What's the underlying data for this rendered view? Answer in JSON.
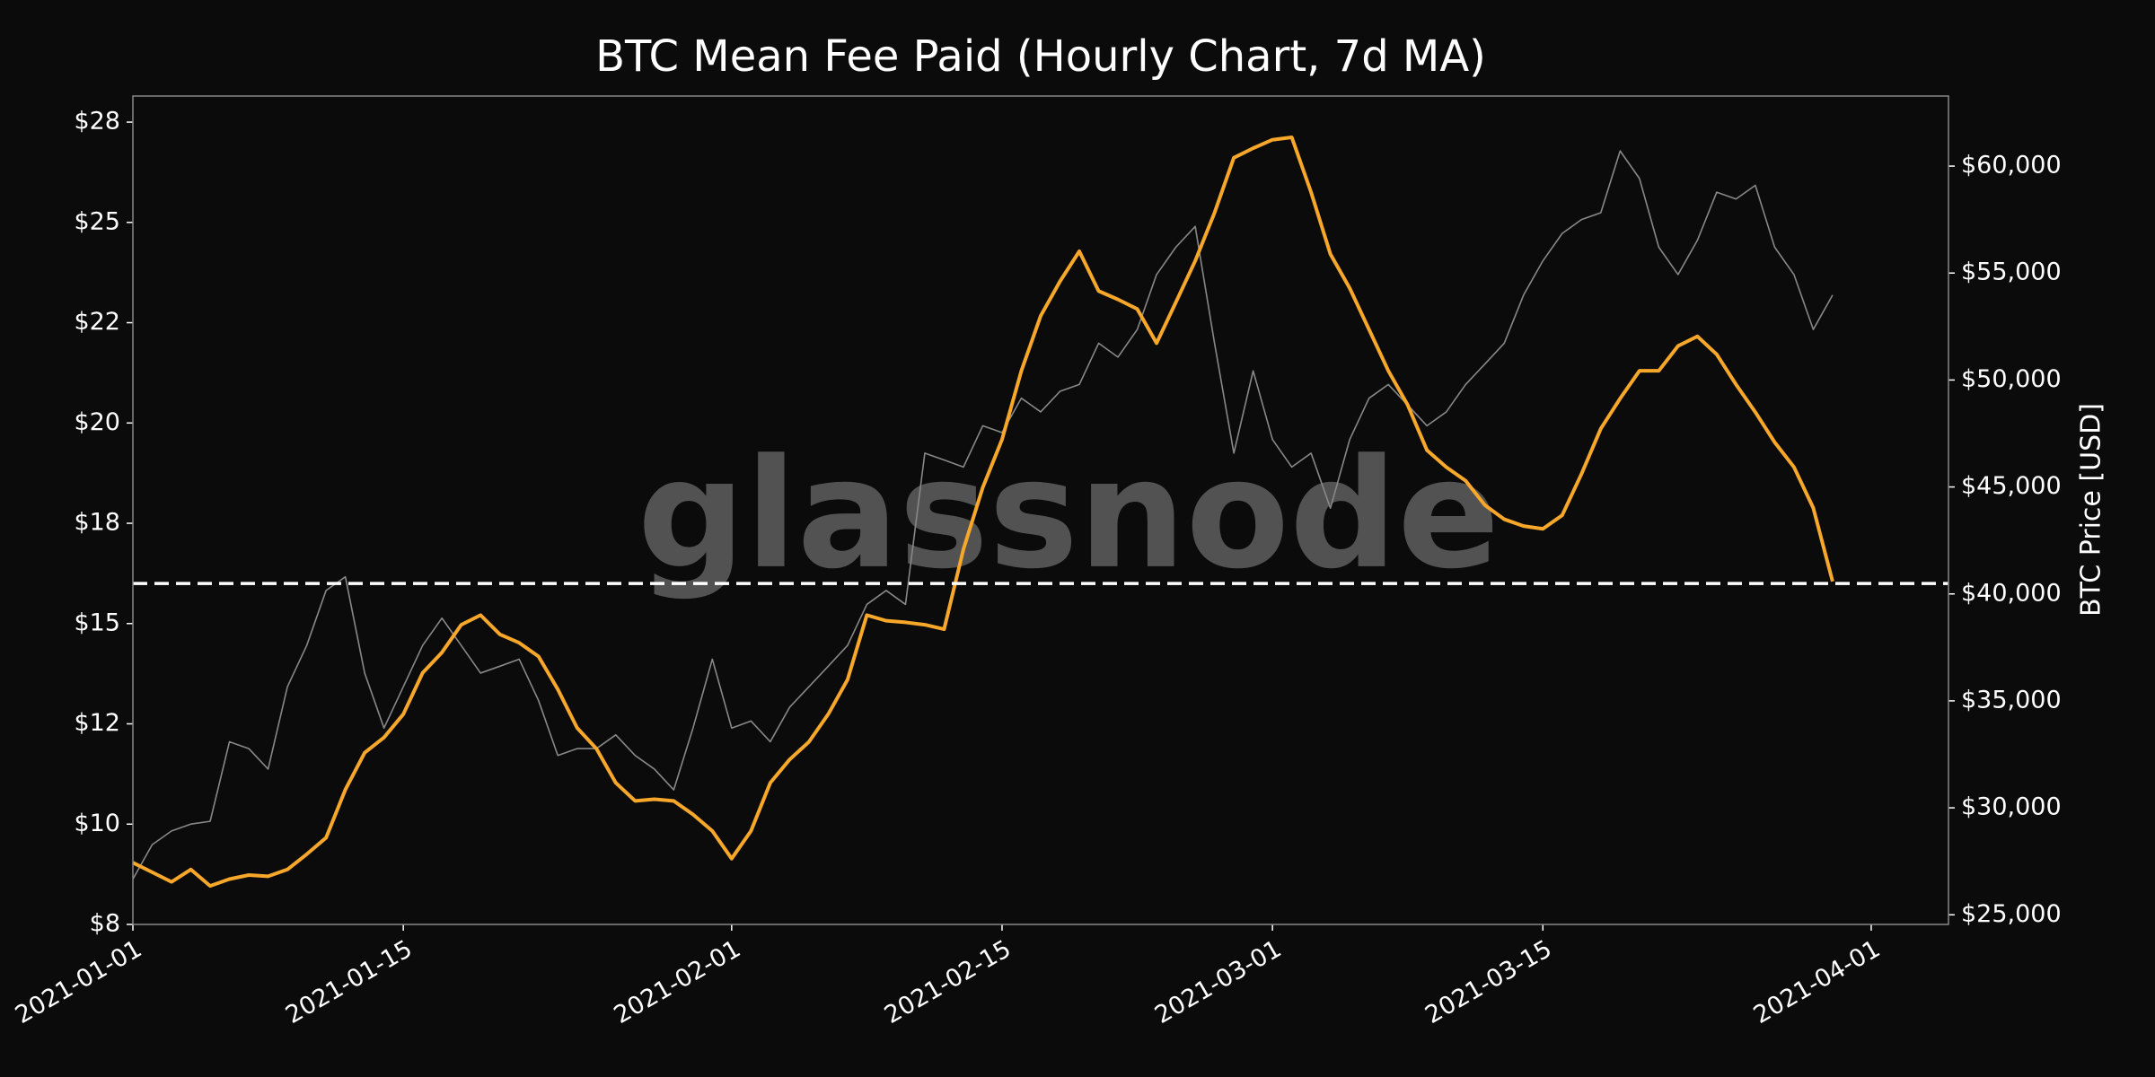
{
  "chart_data": {
    "type": "line",
    "title": "BTC Mean Fee Paid (Hourly Chart, 7d MA)",
    "y2label": "BTC Price [USD]",
    "watermark": "glassnode",
    "x": [
      "2021-01-01",
      "2021-01-02",
      "2021-01-03",
      "2021-01-04",
      "2021-01-05",
      "2021-01-06",
      "2021-01-07",
      "2021-01-08",
      "2021-01-09",
      "2021-01-10",
      "2021-01-11",
      "2021-01-12",
      "2021-01-13",
      "2021-01-14",
      "2021-01-15",
      "2021-01-16",
      "2021-01-17",
      "2021-01-18",
      "2021-01-19",
      "2021-01-20",
      "2021-01-21",
      "2021-01-22",
      "2021-01-23",
      "2021-01-24",
      "2021-01-25",
      "2021-01-26",
      "2021-01-27",
      "2021-01-28",
      "2021-01-29",
      "2021-01-30",
      "2021-01-31",
      "2021-02-01",
      "2021-02-02",
      "2021-02-03",
      "2021-02-04",
      "2021-02-05",
      "2021-02-06",
      "2021-02-07",
      "2021-02-08",
      "2021-02-09",
      "2021-02-10",
      "2021-02-11",
      "2021-02-12",
      "2021-02-13",
      "2021-02-14",
      "2021-02-15",
      "2021-02-16",
      "2021-02-17",
      "2021-02-18",
      "2021-02-19",
      "2021-02-20",
      "2021-02-21",
      "2021-02-22",
      "2021-02-23",
      "2021-02-24",
      "2021-02-25",
      "2021-02-26",
      "2021-02-27",
      "2021-02-28",
      "2021-03-01",
      "2021-03-02",
      "2021-03-03",
      "2021-03-04",
      "2021-03-05",
      "2021-03-06",
      "2021-03-07",
      "2021-03-08",
      "2021-03-09",
      "2021-03-10",
      "2021-03-11",
      "2021-03-12",
      "2021-03-13",
      "2021-03-14",
      "2021-03-15",
      "2021-03-16",
      "2021-03-17",
      "2021-03-18",
      "2021-03-19",
      "2021-03-20",
      "2021-03-21",
      "2021-03-22",
      "2021-03-23",
      "2021-03-24",
      "2021-03-25",
      "2021-03-26",
      "2021-03-27",
      "2021-03-28",
      "2021-03-29",
      "2021-03-30"
    ],
    "series": [
      {
        "color": "#888888",
        "axis": "y2",
        "values": [
          26670,
          28280,
          28920,
          29240,
          29370,
          33090,
          32770,
          31810,
          35660,
          37590,
          40160,
          40800,
          36300,
          33730,
          35660,
          37590,
          38870,
          37590,
          36300,
          36620,
          36950,
          35020,
          32450,
          32770,
          32770,
          33410,
          32450,
          31810,
          30840,
          33730,
          36950,
          33730,
          34060,
          33090,
          34700,
          35660,
          36620,
          37590,
          39510,
          40160,
          39510,
          46580,
          46260,
          45930,
          47860,
          47540,
          49150,
          48510,
          49470,
          49790,
          51720,
          51070,
          52360,
          54930,
          56210,
          57180,
          51720,
          46580,
          50430,
          47220,
          45930,
          46580,
          44010,
          47220,
          49150,
          49790,
          48830,
          47860,
          48510,
          49790,
          50750,
          51720,
          53970,
          55570,
          56850,
          57500,
          57820,
          60710,
          59420,
          56210,
          54930,
          56530,
          58780,
          58460,
          59100,
          56210,
          54930,
          52360,
          53970
        ]
      },
      {
        "color": "#f7a72a",
        "values": [
          9.04,
          8.8,
          8.56,
          8.87,
          8.46,
          8.63,
          8.73,
          8.7,
          8.87,
          9.25,
          9.66,
          10.86,
          11.78,
          12.16,
          12.74,
          13.77,
          14.28,
          14.97,
          15.21,
          14.73,
          14.52,
          14.18,
          13.36,
          12.4,
          11.88,
          11.03,
          10.58,
          10.62,
          10.58,
          10.24,
          9.83,
          9.14,
          9.83,
          11.03,
          11.61,
          12.05,
          12.74,
          13.6,
          15.21,
          15.07,
          15.03,
          14.97,
          14.86,
          16.85,
          18.39,
          19.59,
          21.3,
          22.67,
          23.53,
          24.28,
          23.29,
          23.08,
          22.84,
          21.99,
          23.01,
          24.04,
          25.24,
          26.61,
          26.85,
          27.06,
          27.12,
          25.75,
          24.21,
          23.36,
          22.33,
          21.3,
          20.45,
          19.32,
          18.9,
          18.56,
          17.95,
          17.6,
          17.43,
          17.36,
          17.7,
          18.73,
          19.86,
          20.61,
          21.3,
          21.3,
          21.92,
          22.16,
          21.71,
          20.96,
          20.27,
          19.52,
          18.9,
          17.88,
          16.05
        ]
      }
    ],
    "reference_line": 16.0,
    "xlim": [
      "2021-01-01",
      "2021-04-05"
    ],
    "xticks": [
      "2021-01-01",
      "2021-01-15",
      "2021-02-01",
      "2021-02-15",
      "2021-03-01",
      "2021-03-15",
      "2021-04-01"
    ],
    "ylim": [
      7.5,
      28.15
    ],
    "yticks": [
      {
        "value": 7.5,
        "label": "$8"
      },
      {
        "value": 10,
        "label": "$10"
      },
      {
        "value": 12.5,
        "label": "$12"
      },
      {
        "value": 15,
        "label": "$15"
      },
      {
        "value": 17.5,
        "label": "$18"
      },
      {
        "value": 20,
        "label": "$20"
      },
      {
        "value": 22.5,
        "label": "$22"
      },
      {
        "value": 25,
        "label": "$25"
      },
      {
        "value": 27.5,
        "label": "$28"
      }
    ],
    "y2lim": [
      24550,
      63275
    ],
    "y2ticks": [
      {
        "value": 25000,
        "label": "$25,000"
      },
      {
        "value": 30000,
        "label": "$30,000"
      },
      {
        "value": 35000,
        "label": "$35,000"
      },
      {
        "value": 40000,
        "label": "$40,000"
      },
      {
        "value": 45000,
        "label": "$45,000"
      },
      {
        "value": 50000,
        "label": "$50,000"
      },
      {
        "value": 55000,
        "label": "$55,000"
      },
      {
        "value": 60000,
        "label": "$60,000"
      }
    ]
  }
}
